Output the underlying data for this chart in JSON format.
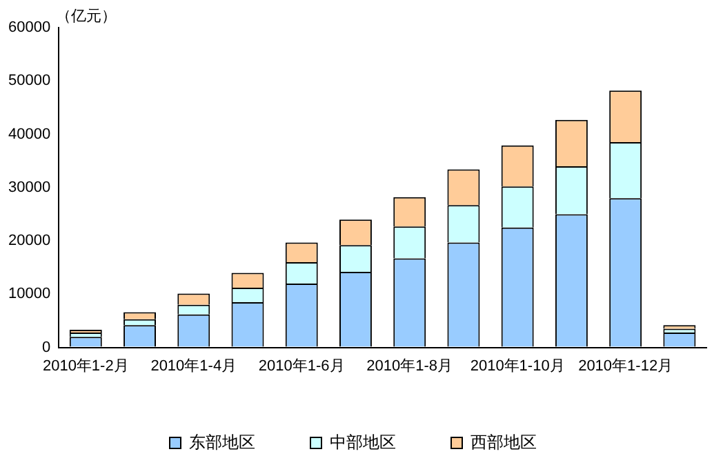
{
  "chart_data": {
    "type": "bar",
    "stacked": true,
    "ylabel": "（亿元）",
    "categories": [
      "2010年1-2月",
      null,
      "2010年1-4月",
      null,
      "2010年1-6月",
      null,
      "2010年1-8月",
      null,
      "2010年1-10月",
      null,
      "2010年1-12月",
      null
    ],
    "series": [
      {
        "name": "东部地区",
        "color": "#99ccff",
        "values": [
          2000,
          4200,
          6200,
          8500,
          12000,
          14200,
          16700,
          19700,
          22500,
          25000,
          28000,
          2800
        ]
      },
      {
        "name": "中部地区",
        "color": "#ccffff",
        "values": [
          800,
          1100,
          1800,
          2700,
          4000,
          5000,
          6000,
          7000,
          7700,
          9000,
          10500,
          700
        ]
      },
      {
        "name": "西部地区",
        "color": "#ffcc99",
        "values": [
          500,
          1300,
          2100,
          2800,
          3700,
          4800,
          5500,
          6700,
          7700,
          8700,
          9700,
          700
        ]
      }
    ],
    "ylim": [
      0,
      60000
    ],
    "yticks": [
      0,
      10000,
      20000,
      30000,
      40000,
      50000,
      60000
    ],
    "grid": false,
    "legend": "bottom"
  }
}
